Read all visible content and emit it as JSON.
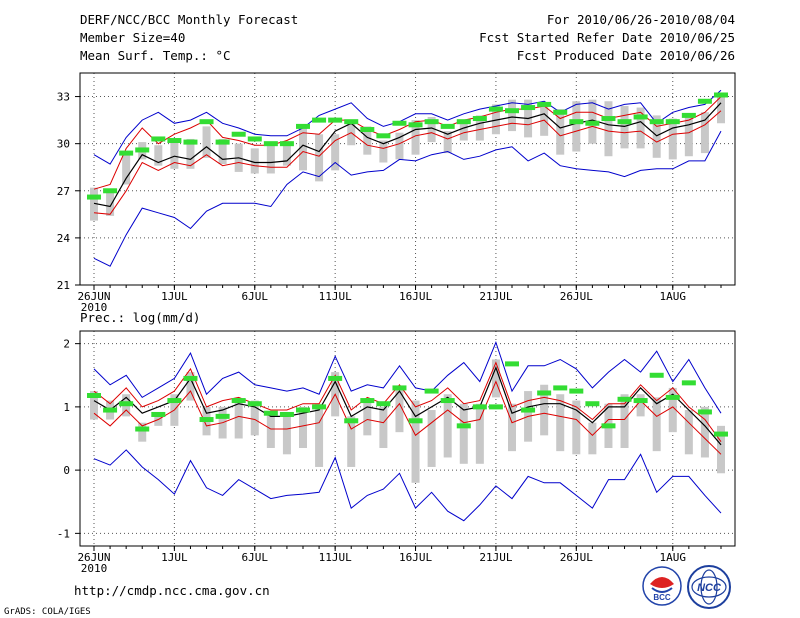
{
  "header": {
    "title": "DERF/NCC/BCC Monthly Forecast",
    "member_size": "Member Size=40",
    "variable_top": "Mean Surf. Temp.: °C",
    "period": "For 2010/06/26-2010/08/04",
    "refer_date": "Fcst Started Refer Date 2010/06/25",
    "produced_date": "Fcst Produced Date 2010/06/26"
  },
  "footer": {
    "url": "http://cmdp.ncc.cma.gov.cn",
    "grads": "GrADS: COLA/IGES",
    "logo1_text": "BCC",
    "logo2_text": "NCC"
  },
  "colors": {
    "max_line": "#0000cc",
    "min_line": "#0000cc",
    "std_line": "#dd0000",
    "mean_line": "#000000",
    "box": "#c8c8c8",
    "marker": "#33dd33"
  },
  "chart_data": [
    {
      "type": "line",
      "title": "Mean Surf. Temp.: °C",
      "ylim": [
        21,
        34.5
      ],
      "yticks": [
        21,
        24,
        27,
        30,
        33
      ],
      "x_tick_labels": [
        "26JUN",
        "1JUL",
        "6JUL",
        "11JUL",
        "16JUL",
        "21JUL",
        "26JUL",
        "1AUG"
      ],
      "x_tick_days": [
        1,
        6,
        11,
        16,
        21,
        26,
        31,
        37
      ],
      "year_label": "2010",
      "days": 40,
      "series": {
        "max": [
          29.3,
          28.7,
          30.4,
          31.5,
          32.0,
          31.3,
          31.5,
          32.0,
          31.3,
          31.0,
          30.6,
          30.5,
          30.5,
          31.0,
          31.8,
          32.2,
          32.6,
          31.6,
          31.1,
          31.4,
          31.9,
          31.9,
          31.5,
          31.9,
          32.2,
          32.4,
          32.6,
          32.5,
          32.7,
          32.0,
          32.5,
          32.6,
          32.2,
          32.5,
          32.6,
          31.3,
          32.0,
          32.3,
          32.5,
          33.4
        ],
        "plus": [
          27.1,
          27.4,
          29.7,
          31.0,
          30.0,
          30.6,
          31.0,
          31.5,
          30.4,
          30.2,
          29.9,
          29.9,
          30.2,
          30.7,
          30.6,
          31.5,
          31.5,
          30.9,
          30.5,
          30.9,
          31.4,
          31.5,
          31.1,
          31.5,
          31.7,
          32.0,
          32.2,
          32.2,
          32.4,
          31.6,
          32.0,
          32.0,
          31.6,
          31.8,
          32.0,
          31.1,
          31.3,
          31.5,
          32.0,
          33.0
        ],
        "mean": [
          26.2,
          26.0,
          27.8,
          29.3,
          28.8,
          29.2,
          29.0,
          29.8,
          29.0,
          29.1,
          28.8,
          28.8,
          28.9,
          29.9,
          29.5,
          30.8,
          31.3,
          30.4,
          30.0,
          30.4,
          30.9,
          31.0,
          30.6,
          31.0,
          31.3,
          31.5,
          31.7,
          31.6,
          31.9,
          31.0,
          31.3,
          31.5,
          31.2,
          31.1,
          31.4,
          30.5,
          31.0,
          31.2,
          31.5,
          32.6
        ],
        "minus": [
          25.6,
          25.5,
          27.0,
          28.8,
          28.3,
          28.8,
          28.6,
          29.3,
          28.6,
          28.8,
          28.6,
          28.5,
          28.5,
          29.5,
          29.2,
          30.2,
          30.7,
          29.9,
          29.7,
          30.0,
          30.5,
          30.7,
          30.3,
          30.7,
          30.9,
          31.1,
          31.3,
          31.2,
          31.5,
          30.5,
          30.8,
          31.1,
          30.8,
          30.7,
          30.8,
          30.1,
          30.6,
          30.7,
          31.2,
          32.1
        ],
        "min": [
          22.7,
          22.2,
          24.2,
          25.9,
          25.6,
          25.3,
          24.6,
          25.7,
          26.2,
          26.2,
          26.2,
          26.0,
          27.4,
          28.2,
          27.9,
          28.8,
          28.0,
          28.2,
          28.3,
          29.0,
          28.9,
          29.3,
          29.5,
          29.0,
          29.2,
          29.6,
          29.8,
          28.9,
          29.4,
          28.6,
          28.4,
          28.3,
          28.2,
          27.9,
          28.3,
          28.4,
          28.4,
          28.9,
          28.9,
          30.8
        ],
        "box_top": [
          27.2,
          27.1,
          29.5,
          30.1,
          29.9,
          30.2,
          30.3,
          31.1,
          30.3,
          30.0,
          29.7,
          29.9,
          30.1,
          31.0,
          30.6,
          30.6,
          31.5,
          31.1,
          30.2,
          30.7,
          31.5,
          31.7,
          30.8,
          31.3,
          31.8,
          32.5,
          32.8,
          32.8,
          32.6,
          32.2,
          32.7,
          32.8,
          32.7,
          32.4,
          32.3,
          31.8,
          31.6,
          31.7,
          32.0,
          33.2
        ],
        "box_bottom": [
          25.1,
          25.4,
          27.4,
          29.0,
          28.6,
          28.4,
          28.4,
          29.1,
          28.7,
          28.2,
          28.1,
          28.1,
          28.6,
          28.3,
          27.6,
          28.3,
          29.9,
          29.3,
          28.8,
          29.0,
          29.3,
          30.1,
          29.4,
          30.2,
          30.2,
          30.6,
          30.8,
          30.4,
          30.5,
          29.3,
          29.5,
          30.0,
          29.2,
          29.7,
          29.7,
          29.1,
          29.0,
          29.2,
          29.4,
          31.3
        ],
        "marker": [
          26.6,
          27.0,
          29.4,
          29.6,
          30.3,
          30.2,
          30.1,
          31.4,
          30.1,
          30.6,
          30.3,
          30.0,
          30.0,
          31.1,
          31.5,
          31.5,
          31.4,
          30.9,
          30.5,
          31.3,
          31.2,
          31.4,
          31.1,
          31.4,
          31.6,
          32.2,
          32.1,
          32.3,
          32.5,
          32.0,
          31.4,
          31.3,
          31.6,
          31.4,
          31.7,
          31.4,
          31.4,
          31.8,
          32.7,
          33.1
        ]
      }
    },
    {
      "type": "line",
      "title": "Prec.: log(mm/d)",
      "ylim": [
        -1.2,
        2.2
      ],
      "yticks": [
        -1,
        0,
        1,
        2
      ],
      "x_tick_labels": [
        "26JUN",
        "1JUL",
        "6JUL",
        "11JUL",
        "16JUL",
        "21JUL",
        "26JUL",
        "1AUG"
      ],
      "x_tick_days": [
        1,
        6,
        11,
        16,
        21,
        26,
        31,
        37
      ],
      "year_label": "2010",
      "days": 40,
      "series": {
        "max": [
          1.6,
          1.35,
          1.5,
          1.15,
          1.3,
          1.45,
          1.85,
          1.2,
          1.45,
          1.55,
          1.35,
          1.3,
          1.25,
          1.3,
          1.2,
          1.8,
          1.25,
          1.35,
          1.3,
          1.65,
          1.3,
          1.25,
          1.5,
          1.7,
          1.4,
          2.02,
          1.25,
          1.65,
          1.65,
          1.75,
          1.6,
          1.3,
          1.55,
          1.75,
          1.55,
          1.88,
          1.4,
          1.75,
          1.3,
          0.9
        ],
        "plus": [
          1.25,
          1.05,
          1.3,
          1.0,
          1.1,
          1.25,
          1.6,
          1.0,
          1.1,
          1.15,
          1.05,
          0.95,
          0.95,
          1.05,
          1.05,
          1.5,
          0.95,
          1.15,
          1.05,
          1.35,
          1.0,
          1.1,
          1.3,
          1.05,
          1.1,
          1.7,
          1.0,
          1.1,
          1.15,
          1.1,
          1.0,
          0.8,
          1.05,
          1.05,
          1.35,
          1.1,
          1.3,
          1.0,
          0.8,
          0.45
        ],
        "mean": [
          1.1,
          0.95,
          1.15,
          0.9,
          1.0,
          1.1,
          1.45,
          0.9,
          0.95,
          1.05,
          1.0,
          0.85,
          0.85,
          0.9,
          0.95,
          1.4,
          0.85,
          1.0,
          0.95,
          1.25,
          0.85,
          1.0,
          1.15,
          0.95,
          1.0,
          1.62,
          0.9,
          1.0,
          1.05,
          1.05,
          0.95,
          0.75,
          1.0,
          1.0,
          1.3,
          1.05,
          1.2,
          0.95,
          0.7,
          0.4
        ],
        "minus": [
          0.9,
          0.7,
          0.95,
          0.7,
          0.8,
          0.95,
          1.25,
          0.7,
          0.75,
          0.85,
          0.8,
          0.65,
          0.65,
          0.7,
          0.75,
          1.2,
          0.65,
          0.8,
          0.75,
          1.05,
          0.55,
          0.75,
          0.95,
          0.75,
          0.8,
          1.4,
          0.75,
          0.85,
          0.9,
          0.85,
          0.8,
          0.55,
          0.8,
          0.8,
          1.1,
          0.85,
          1.0,
          0.75,
          0.5,
          0.25
        ],
        "min": [
          0.18,
          0.08,
          0.32,
          0.05,
          -0.15,
          -0.38,
          0.15,
          -0.28,
          -0.4,
          -0.15,
          -0.3,
          -0.45,
          -0.4,
          -0.38,
          -0.35,
          0.2,
          -0.6,
          -0.4,
          -0.3,
          -0.05,
          -0.6,
          -0.35,
          -0.65,
          -0.8,
          -0.55,
          -0.25,
          -0.45,
          -0.1,
          -0.2,
          -0.2,
          -0.4,
          -0.6,
          -0.15,
          -0.15,
          0.25,
          -0.35,
          -0.1,
          -0.1,
          -0.4,
          -0.68
        ],
        "box_top": [
          1.25,
          1.1,
          1.2,
          0.75,
          0.9,
          1.2,
          1.55,
          1.0,
          1.0,
          1.1,
          1.1,
          0.9,
          0.9,
          1.0,
          1.05,
          1.55,
          0.85,
          1.1,
          1.0,
          1.3,
          1.1,
          0.95,
          1.2,
          1.05,
          1.05,
          1.75,
          1.05,
          1.25,
          1.35,
          1.2,
          1.1,
          0.75,
          1.05,
          1.2,
          1.2,
          1.15,
          1.3,
          0.95,
          1.0,
          0.7
        ],
        "box_bottom": [
          0.8,
          0.8,
          0.85,
          0.45,
          0.7,
          0.7,
          1.1,
          0.55,
          0.5,
          0.5,
          0.55,
          0.35,
          0.25,
          0.35,
          0.05,
          0.85,
          0.05,
          0.55,
          0.35,
          0.6,
          -0.2,
          0.05,
          0.2,
          0.1,
          0.1,
          1.15,
          0.3,
          0.45,
          0.55,
          0.3,
          0.25,
          0.25,
          0.35,
          0.35,
          0.85,
          0.3,
          0.6,
          0.25,
          0.2,
          -0.05
        ],
        "marker": [
          1.18,
          0.95,
          1.05,
          0.65,
          0.88,
          1.1,
          1.45,
          0.8,
          0.85,
          1.1,
          1.05,
          0.9,
          0.88,
          0.95,
          1.0,
          1.45,
          0.78,
          1.1,
          1.05,
          1.3,
          0.78,
          1.25,
          1.1,
          0.7,
          1.0,
          1.0,
          1.68,
          0.95,
          1.22,
          1.3,
          1.25,
          1.05,
          0.7,
          1.12,
          1.1,
          1.5,
          1.15,
          1.38,
          0.92,
          0.57
        ]
      }
    }
  ]
}
